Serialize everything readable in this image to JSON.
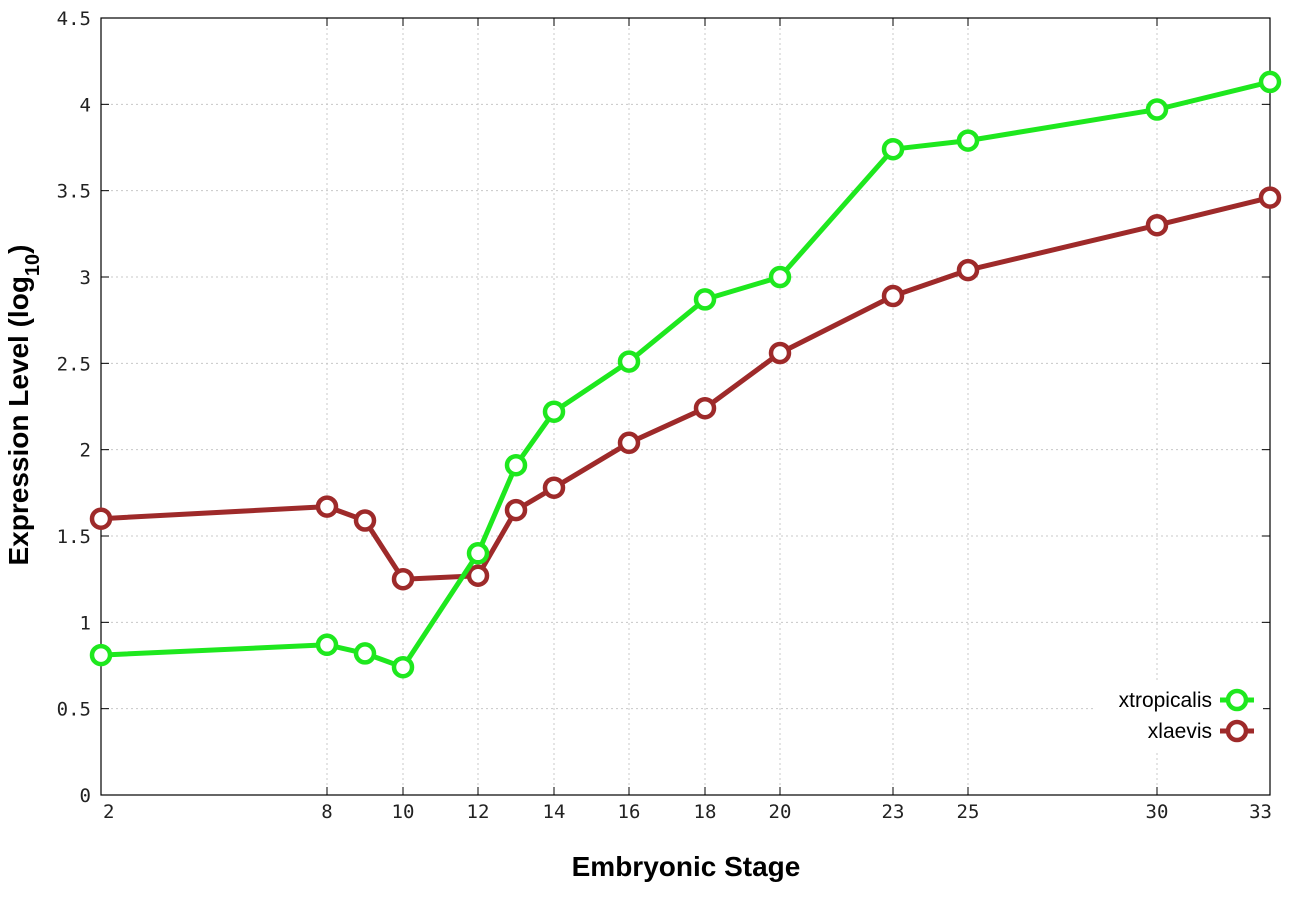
{
  "chart_data": {
    "type": "line",
    "title": "",
    "xlabel": "Embryonic Stage",
    "ylabel": {
      "main": "Expression Level (log",
      "sub": "10",
      "close": ")"
    },
    "x_ticks": [
      2,
      8,
      10,
      12,
      14,
      16,
      18,
      20,
      23,
      25,
      30,
      33
    ],
    "x_scale": "categorical-spacing",
    "y_ticks": [
      "0",
      "0.5",
      "1",
      "1.5",
      "2",
      "2.5",
      "3",
      "3.5",
      "4",
      "4.5"
    ],
    "ylim": [
      0,
      4.5
    ],
    "grid": true,
    "legend_position": "bottom-right",
    "x": [
      2,
      8,
      9,
      10,
      12,
      13,
      14,
      16,
      18,
      20,
      23,
      25,
      30,
      33
    ],
    "series": [
      {
        "name": "xtropicalis",
        "color": "#1ee81e",
        "values": [
          0.81,
          0.87,
          0.82,
          0.74,
          1.4,
          1.91,
          2.22,
          2.51,
          2.87,
          3.0,
          3.74,
          3.79,
          3.97,
          4.13
        ]
      },
      {
        "name": "xlaevis",
        "color": "#9e2a2a",
        "values": [
          1.6,
          1.67,
          1.59,
          1.25,
          1.27,
          1.65,
          1.78,
          2.04,
          2.24,
          2.56,
          2.89,
          3.04,
          3.3,
          3.46
        ]
      }
    ]
  }
}
